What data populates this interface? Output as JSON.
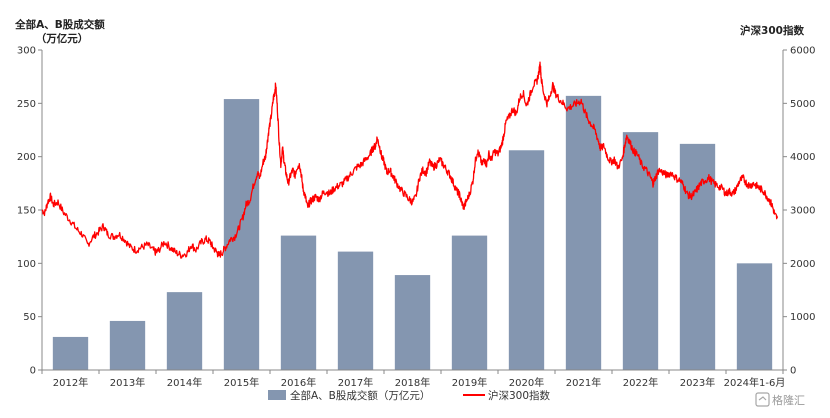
{
  "chart_data": {
    "type": "bar",
    "title_left": [
      "全部A、B股成交额",
      "（万亿元）"
    ],
    "title_right": "沪深300指数",
    "categories": [
      "2012年",
      "2013年",
      "2014年",
      "2015年",
      "2016年",
      "2017年",
      "2018年",
      "2019年",
      "2020年",
      "2021年",
      "2022年",
      "2023年",
      "2024年1-6月"
    ],
    "ylim_left": [
      0,
      300
    ],
    "yticks_left": [
      "0",
      "50",
      "100",
      "150",
      "200",
      "250",
      "300"
    ],
    "ylim_right": [
      0,
      6000
    ],
    "yticks_right": [
      "0",
      "1000",
      "2000",
      "3000",
      "4000",
      "5000",
      "6000"
    ],
    "series": [
      {
        "name": "全部A、B股成交额（万亿元）",
        "axis": "left",
        "kind": "bar",
        "color": "#8496b0",
        "values": [
          31,
          46,
          73,
          254,
          126,
          111,
          89,
          126,
          206,
          257,
          223,
          212,
          100
        ]
      },
      {
        "name": "沪深300指数",
        "axis": "right",
        "kind": "line",
        "color": "#ff0000",
        "points": [
          [
            0.0,
            3000
          ],
          [
            0.05,
            2950
          ],
          [
            0.1,
            3150
          ],
          [
            0.15,
            3250
          ],
          [
            0.2,
            3100
          ],
          [
            0.28,
            3150
          ],
          [
            0.38,
            2950
          ],
          [
            0.5,
            2800
          ],
          [
            0.6,
            2650
          ],
          [
            0.7,
            2550
          ],
          [
            0.8,
            2350
          ],
          [
            0.9,
            2500
          ],
          [
            1.0,
            2600
          ],
          [
            1.08,
            2700
          ],
          [
            1.15,
            2550
          ],
          [
            1.25,
            2500
          ],
          [
            1.35,
            2550
          ],
          [
            1.45,
            2450
          ],
          [
            1.55,
            2300
          ],
          [
            1.65,
            2250
          ],
          [
            1.75,
            2300
          ],
          [
            1.85,
            2350
          ],
          [
            1.95,
            2250
          ],
          [
            2.0,
            2200
          ],
          [
            2.05,
            2250
          ],
          [
            2.15,
            2400
          ],
          [
            2.25,
            2300
          ],
          [
            2.35,
            2200
          ],
          [
            2.45,
            2150
          ],
          [
            2.55,
            2200
          ],
          [
            2.62,
            2350
          ],
          [
            2.7,
            2250
          ],
          [
            2.8,
            2400
          ],
          [
            2.88,
            2450
          ],
          [
            2.95,
            2400
          ],
          [
            3.0,
            2300
          ],
          [
            3.07,
            2200
          ],
          [
            3.1,
            2150
          ],
          [
            3.16,
            2200
          ],
          [
            3.22,
            2300
          ],
          [
            3.3,
            2450
          ],
          [
            3.38,
            2500
          ],
          [
            3.45,
            2650
          ],
          [
            3.52,
            2850
          ],
          [
            3.58,
            3100
          ],
          [
            3.65,
            3200
          ],
          [
            3.72,
            3500
          ],
          [
            3.78,
            3700
          ],
          [
            3.82,
            3600
          ],
          [
            3.88,
            3900
          ],
          [
            3.92,
            4000
          ],
          [
            3.95,
            4250
          ],
          [
            3.98,
            4500
          ],
          [
            4.02,
            4750
          ],
          [
            4.06,
            5100
          ],
          [
            4.08,
            5200
          ],
          [
            4.1,
            5350
          ],
          [
            4.13,
            4900
          ],
          [
            4.16,
            4300
          ],
          [
            4.19,
            3850
          ],
          [
            4.22,
            4150
          ],
          [
            4.25,
            3900
          ],
          [
            4.28,
            3700
          ],
          [
            4.32,
            3500
          ],
          [
            4.36,
            3650
          ],
          [
            4.4,
            3750
          ],
          [
            4.44,
            3650
          ],
          [
            4.47,
            3800
          ],
          [
            4.52,
            3850
          ],
          [
            4.55,
            3650
          ],
          [
            4.58,
            3400
          ],
          [
            4.62,
            3250
          ],
          [
            4.66,
            3050
          ],
          [
            4.7,
            3150
          ],
          [
            4.75,
            3200
          ],
          [
            4.8,
            3250
          ],
          [
            4.86,
            3200
          ],
          [
            4.92,
            3300
          ],
          [
            4.98,
            3350
          ],
          [
            5.05,
            3300
          ],
          [
            5.12,
            3400
          ],
          [
            5.2,
            3450
          ],
          [
            5.28,
            3500
          ],
          [
            5.36,
            3600
          ],
          [
            5.44,
            3700
          ],
          [
            5.52,
            3800
          ],
          [
            5.6,
            3850
          ],
          [
            5.68,
            3950
          ],
          [
            5.76,
            4050
          ],
          [
            5.8,
            4150
          ],
          [
            5.85,
            4200
          ],
          [
            5.88,
            4350
          ],
          [
            5.92,
            4200
          ],
          [
            5.96,
            4000
          ],
          [
            6.0,
            3900
          ],
          [
            6.05,
            3700
          ],
          [
            6.1,
            3750
          ],
          [
            6.15,
            3650
          ],
          [
            6.2,
            3550
          ],
          [
            6.28,
            3400
          ],
          [
            6.36,
            3300
          ],
          [
            6.44,
            3200
          ],
          [
            6.5,
            3150
          ],
          [
            6.56,
            3250
          ],
          [
            6.62,
            3600
          ],
          [
            6.68,
            3750
          ],
          [
            6.74,
            3700
          ],
          [
            6.8,
            3900
          ],
          [
            6.86,
            3800
          ],
          [
            6.92,
            3850
          ],
          [
            6.98,
            3950
          ],
          [
            7.04,
            3850
          ],
          [
            7.1,
            3750
          ],
          [
            7.16,
            3650
          ],
          [
            7.22,
            3500
          ],
          [
            7.28,
            3350
          ],
          [
            7.32,
            3300
          ],
          [
            7.36,
            3150
          ],
          [
            7.4,
            3050
          ],
          [
            7.44,
            3150
          ],
          [
            7.5,
            3300
          ],
          [
            7.56,
            3550
          ],
          [
            7.6,
            3900
          ],
          [
            7.64,
            4100
          ],
          [
            7.68,
            4000
          ],
          [
            7.72,
            3850
          ],
          [
            7.76,
            3950
          ],
          [
            7.8,
            3850
          ],
          [
            7.84,
            4050
          ],
          [
            7.88,
            3950
          ],
          [
            7.94,
            4100
          ],
          [
            8.0,
            4050
          ],
          [
            8.06,
            4200
          ],
          [
            8.1,
            4400
          ],
          [
            8.14,
            4650
          ],
          [
            8.2,
            4750
          ],
          [
            8.26,
            4900
          ],
          [
            8.32,
            4800
          ],
          [
            8.38,
            5100
          ],
          [
            8.44,
            5200
          ],
          [
            8.5,
            4950
          ],
          [
            8.56,
            5150
          ],
          [
            8.62,
            5350
          ],
          [
            8.68,
            5400
          ],
          [
            8.72,
            5600
          ],
          [
            8.74,
            5750
          ],
          [
            8.76,
            5450
          ],
          [
            8.8,
            5200
          ],
          [
            8.86,
            5000
          ],
          [
            8.9,
            5100
          ],
          [
            8.96,
            5350
          ],
          [
            9.0,
            5200
          ],
          [
            9.06,
            5100
          ],
          [
            9.14,
            5000
          ],
          [
            9.22,
            4900
          ],
          [
            9.3,
            4950
          ],
          [
            9.38,
            5000
          ],
          [
            9.46,
            5050
          ],
          [
            9.52,
            4850
          ],
          [
            9.58,
            4700
          ],
          [
            9.64,
            4600
          ],
          [
            9.7,
            4500
          ],
          [
            9.76,
            4300
          ],
          [
            9.8,
            4150
          ],
          [
            9.86,
            4200
          ],
          [
            9.92,
            4000
          ],
          [
            9.98,
            3900
          ],
          [
            10.04,
            3950
          ],
          [
            10.1,
            3800
          ],
          [
            10.18,
            3950
          ],
          [
            10.22,
            4200
          ],
          [
            10.26,
            4400
          ],
          [
            10.32,
            4250
          ],
          [
            10.38,
            4100
          ],
          [
            10.44,
            4050
          ],
          [
            10.52,
            3850
          ],
          [
            10.6,
            3750
          ],
          [
            10.68,
            3600
          ],
          [
            10.72,
            3500
          ],
          [
            10.76,
            3600
          ],
          [
            10.82,
            3750
          ],
          [
            10.9,
            3700
          ],
          [
            10.96,
            3650
          ],
          [
            11.04,
            3700
          ],
          [
            11.12,
            3600
          ],
          [
            11.2,
            3550
          ],
          [
            11.26,
            3450
          ],
          [
            11.32,
            3300
          ],
          [
            11.38,
            3250
          ],
          [
            11.44,
            3300
          ],
          [
            11.5,
            3400
          ],
          [
            11.56,
            3500
          ],
          [
            11.62,
            3550
          ],
          [
            11.7,
            3600
          ],
          [
            11.78,
            3500
          ],
          [
            11.86,
            3450
          ],
          [
            11.94,
            3400
          ],
          [
            12.0,
            3300
          ],
          [
            12.06,
            3350
          ],
          [
            12.12,
            3300
          ],
          [
            12.18,
            3400
          ],
          [
            12.24,
            3550
          ],
          [
            12.3,
            3600
          ],
          [
            12.36,
            3500
          ],
          [
            12.42,
            3450
          ],
          [
            12.48,
            3500
          ],
          [
            12.54,
            3450
          ],
          [
            12.6,
            3400
          ],
          [
            12.66,
            3350
          ],
          [
            12.72,
            3250
          ],
          [
            12.78,
            3150
          ],
          [
            12.82,
            3050
          ],
          [
            12.86,
            2900
          ],
          [
            12.9,
            2850
          ]
        ]
      }
    ],
    "legend_position": "bottom",
    "grid": false
  },
  "watermark": {
    "text": "格隆汇"
  }
}
